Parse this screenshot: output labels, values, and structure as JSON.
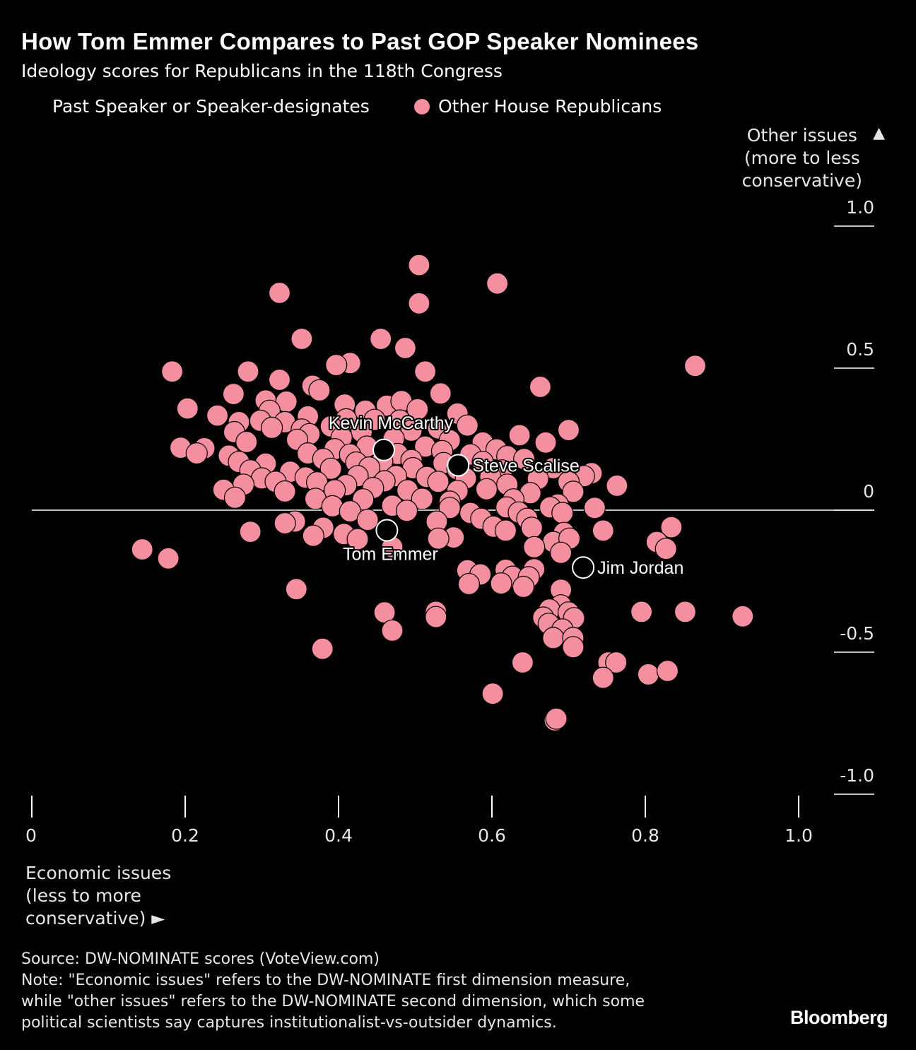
{
  "title": "How Tom Emmer Compares to Past GOP Speaker Nominees",
  "subtitle": "Ideology scores for Republicans in the 118th Congress",
  "legend": {
    "speakers": "Past Speaker or Speaker-designates",
    "others": "Other House Republicans"
  },
  "y_axis_label": [
    "Other issues",
    "(more to less",
    "conservative)"
  ],
  "y_axis_arrow": "▲",
  "x_axis_label": [
    "Economic issues",
    "(less to more",
    "conservative) ►"
  ],
  "source": "Source: DW-NOMINATE scores (VoteView.com)",
  "note": [
    "Note: \"Economic issues\" refers to the DW-NOMINATE first dimension measure,",
    "while \"other issues\" refers to the DW-NOMINATE second dimension, which some",
    "political scientists say captures institutionalist-vs-outsider dynamics."
  ],
  "brand": "Bloomberg",
  "colors": {
    "others": "#f48fa0",
    "speakers_fill": "#000000",
    "stroke": "#ffffff",
    "background": "#000000"
  },
  "chart_data": {
    "type": "scatter",
    "xlabel": "Economic issues (less to more conservative)",
    "ylabel": "Other issues (more to less conservative)",
    "xlim": [
      0,
      1.1
    ],
    "ylim": [
      -1.0,
      1.0
    ],
    "x_ticks": [
      0,
      0.2,
      0.4,
      0.6,
      0.8,
      1.0
    ],
    "x_tick_labels": [
      "0",
      "0.2",
      "0.4",
      "0.6",
      "0.8",
      "1.0"
    ],
    "y_ticks": [
      1.0,
      0.5,
      0,
      -0.5,
      -1.0
    ],
    "y_tick_labels": [
      "1.0",
      "0.5",
      "0",
      "-0.5",
      "-1.0"
    ],
    "zero_line": true,
    "highlighted": [
      {
        "name": "Kevin McCarthy",
        "x": 0.459,
        "y": 0.212,
        "label_position": "above"
      },
      {
        "name": "Steve Scalise",
        "x": 0.556,
        "y": 0.158,
        "label_position": "right"
      },
      {
        "name": "Tom Emmer",
        "x": 0.463,
        "y": -0.071,
        "label_position": "below"
      },
      {
        "name": "Jim Jordan",
        "x": 0.719,
        "y": -0.202,
        "label_position": "right"
      }
    ],
    "series": [
      {
        "name": "Other House Republicans",
        "points": [
          [
            0.505,
            0.863
          ],
          [
            0.607,
            0.798
          ],
          [
            0.323,
            0.765
          ],
          [
            0.505,
            0.728
          ],
          [
            0.183,
            0.488
          ],
          [
            0.352,
            0.603
          ],
          [
            0.455,
            0.603
          ],
          [
            0.487,
            0.571
          ],
          [
            0.415,
            0.518
          ],
          [
            0.397,
            0.511
          ],
          [
            0.513,
            0.488
          ],
          [
            0.282,
            0.488
          ],
          [
            0.323,
            0.459
          ],
          [
            0.663,
            0.434
          ],
          [
            0.865,
            0.508
          ],
          [
            0.366,
            0.438
          ],
          [
            0.375,
            0.422
          ],
          [
            0.533,
            0.411
          ],
          [
            0.263,
            0.409
          ],
          [
            0.305,
            0.386
          ],
          [
            0.332,
            0.382
          ],
          [
            0.408,
            0.372
          ],
          [
            0.463,
            0.368
          ],
          [
            0.482,
            0.384
          ],
          [
            0.203,
            0.358
          ],
          [
            0.31,
            0.35
          ],
          [
            0.435,
            0.35
          ],
          [
            0.503,
            0.355
          ],
          [
            0.555,
            0.34
          ],
          [
            0.242,
            0.333
          ],
          [
            0.298,
            0.315
          ],
          [
            0.33,
            0.31
          ],
          [
            0.36,
            0.33
          ],
          [
            0.41,
            0.32
          ],
          [
            0.447,
            0.318
          ],
          [
            0.48,
            0.316
          ],
          [
            0.27,
            0.31
          ],
          [
            0.313,
            0.29
          ],
          [
            0.352,
            0.284
          ],
          [
            0.39,
            0.295
          ],
          [
            0.53,
            0.288
          ],
          [
            0.568,
            0.298
          ],
          [
            0.264,
            0.275
          ],
          [
            0.362,
            0.268
          ],
          [
            0.43,
            0.276
          ],
          [
            0.495,
            0.28
          ],
          [
            0.636,
            0.264
          ],
          [
            0.7,
            0.282
          ],
          [
            0.28,
            0.24
          ],
          [
            0.346,
            0.248
          ],
          [
            0.404,
            0.256
          ],
          [
            0.472,
            0.252
          ],
          [
            0.545,
            0.246
          ],
          [
            0.588,
            0.238
          ],
          [
            0.194,
            0.22
          ],
          [
            0.225,
            0.218
          ],
          [
            0.395,
            0.215
          ],
          [
            0.437,
            0.224
          ],
          [
            0.513,
            0.224
          ],
          [
            0.606,
            0.214
          ],
          [
            0.67,
            0.238
          ],
          [
            0.215,
            0.2
          ],
          [
            0.257,
            0.192
          ],
          [
            0.36,
            0.2
          ],
          [
            0.415,
            0.196
          ],
          [
            0.477,
            0.198
          ],
          [
            0.535,
            0.208
          ],
          [
            0.572,
            0.196
          ],
          [
            0.62,
            0.19
          ],
          [
            0.27,
            0.17
          ],
          [
            0.305,
            0.164
          ],
          [
            0.38,
            0.18
          ],
          [
            0.423,
            0.168
          ],
          [
            0.457,
            0.172
          ],
          [
            0.495,
            0.176
          ],
          [
            0.537,
            0.166
          ],
          [
            0.588,
            0.17
          ],
          [
            0.642,
            0.18
          ],
          [
            0.285,
            0.14
          ],
          [
            0.337,
            0.135
          ],
          [
            0.39,
            0.146
          ],
          [
            0.44,
            0.15
          ],
          [
            0.497,
            0.148
          ],
          [
            0.555,
            0.144
          ],
          [
            0.613,
            0.14
          ],
          [
            0.68,
            0.148
          ],
          [
            0.73,
            0.13
          ],
          [
            0.3,
            0.112
          ],
          [
            0.357,
            0.115
          ],
          [
            0.425,
            0.12
          ],
          [
            0.475,
            0.12
          ],
          [
            0.515,
            0.117
          ],
          [
            0.566,
            0.112
          ],
          [
            0.598,
            0.118
          ],
          [
            0.66,
            0.11
          ],
          [
            0.72,
            0.12
          ],
          [
            0.276,
            0.09
          ],
          [
            0.318,
            0.1
          ],
          [
            0.372,
            0.098
          ],
          [
            0.41,
            0.088
          ],
          [
            0.46,
            0.102
          ],
          [
            0.53,
            0.1
          ],
          [
            0.62,
            0.09
          ],
          [
            0.7,
            0.1
          ],
          [
            0.763,
            0.086
          ],
          [
            0.25,
            0.072
          ],
          [
            0.33,
            0.066
          ],
          [
            0.395,
            0.07
          ],
          [
            0.445,
            0.078
          ],
          [
            0.49,
            0.07
          ],
          [
            0.555,
            0.068
          ],
          [
            0.593,
            0.074
          ],
          [
            0.65,
            0.06
          ],
          [
            0.706,
            0.065
          ],
          [
            0.265,
            0.044
          ],
          [
            0.37,
            0.04
          ],
          [
            0.432,
            0.038
          ],
          [
            0.509,
            0.04
          ],
          [
            0.545,
            0.03
          ],
          [
            0.628,
            0.038
          ],
          [
            0.686,
            0.02
          ],
          [
            0.734,
            0.008
          ],
          [
            0.392,
            0.014
          ],
          [
            0.47,
            0.016
          ],
          [
            0.545,
            0.008
          ],
          [
            0.619,
            0.01
          ],
          [
            0.676,
            0.01
          ],
          [
            0.415,
            -0.004
          ],
          [
            0.489,
            -0.002
          ],
          [
            0.572,
            -0.01
          ],
          [
            0.635,
            -0.008
          ],
          [
            0.692,
            -0.01
          ],
          [
            0.343,
            -0.04
          ],
          [
            0.438,
            -0.034
          ],
          [
            0.528,
            -0.04
          ],
          [
            0.586,
            -0.03
          ],
          [
            0.646,
            -0.03
          ],
          [
            0.33,
            -0.046
          ],
          [
            0.38,
            -0.062
          ],
          [
            0.602,
            -0.058
          ],
          [
            0.652,
            -0.062
          ],
          [
            0.694,
            -0.08
          ],
          [
            0.745,
            -0.072
          ],
          [
            0.285,
            -0.076
          ],
          [
            0.367,
            -0.09
          ],
          [
            0.407,
            -0.084
          ],
          [
            0.55,
            -0.096
          ],
          [
            0.618,
            -0.072
          ],
          [
            0.68,
            -0.112
          ],
          [
            0.701,
            -0.1
          ],
          [
            0.834,
            -0.06
          ],
          [
            0.144,
            -0.138
          ],
          [
            0.178,
            -0.17
          ],
          [
            0.425,
            -0.102
          ],
          [
            0.47,
            -0.13
          ],
          [
            0.53,
            -0.1
          ],
          [
            0.655,
            -0.13
          ],
          [
            0.69,
            -0.15
          ],
          [
            0.815,
            -0.112
          ],
          [
            0.827,
            -0.136
          ],
          [
            0.568,
            -0.212
          ],
          [
            0.618,
            -0.21
          ],
          [
            0.655,
            -0.208
          ],
          [
            0.585,
            -0.226
          ],
          [
            0.627,
            -0.234
          ],
          [
            0.648,
            -0.236
          ],
          [
            0.612,
            -0.258
          ],
          [
            0.641,
            -0.27
          ],
          [
            0.57,
            -0.26
          ],
          [
            0.69,
            -0.28
          ],
          [
            0.345,
            -0.278
          ],
          [
            0.69,
            -0.335
          ],
          [
            0.675,
            -0.35
          ],
          [
            0.7,
            -0.36
          ],
          [
            0.667,
            -0.378
          ],
          [
            0.707,
            -0.38
          ],
          [
            0.674,
            -0.4
          ],
          [
            0.692,
            -0.42
          ],
          [
            0.795,
            -0.358
          ],
          [
            0.852,
            -0.358
          ],
          [
            0.927,
            -0.374
          ],
          [
            0.46,
            -0.36
          ],
          [
            0.527,
            -0.358
          ],
          [
            0.527,
            -0.376
          ],
          [
            0.47,
            -0.424
          ],
          [
            0.379,
            -0.488
          ],
          [
            0.68,
            -0.45
          ],
          [
            0.706,
            -0.45
          ],
          [
            0.706,
            -0.482
          ],
          [
            0.64,
            -0.536
          ],
          [
            0.752,
            -0.536
          ],
          [
            0.762,
            -0.536
          ],
          [
            0.745,
            -0.59
          ],
          [
            0.804,
            -0.578
          ],
          [
            0.829,
            -0.566
          ],
          [
            0.601,
            -0.646
          ],
          [
            0.682,
            -0.74
          ],
          [
            0.684,
            -0.734
          ]
        ]
      }
    ]
  }
}
